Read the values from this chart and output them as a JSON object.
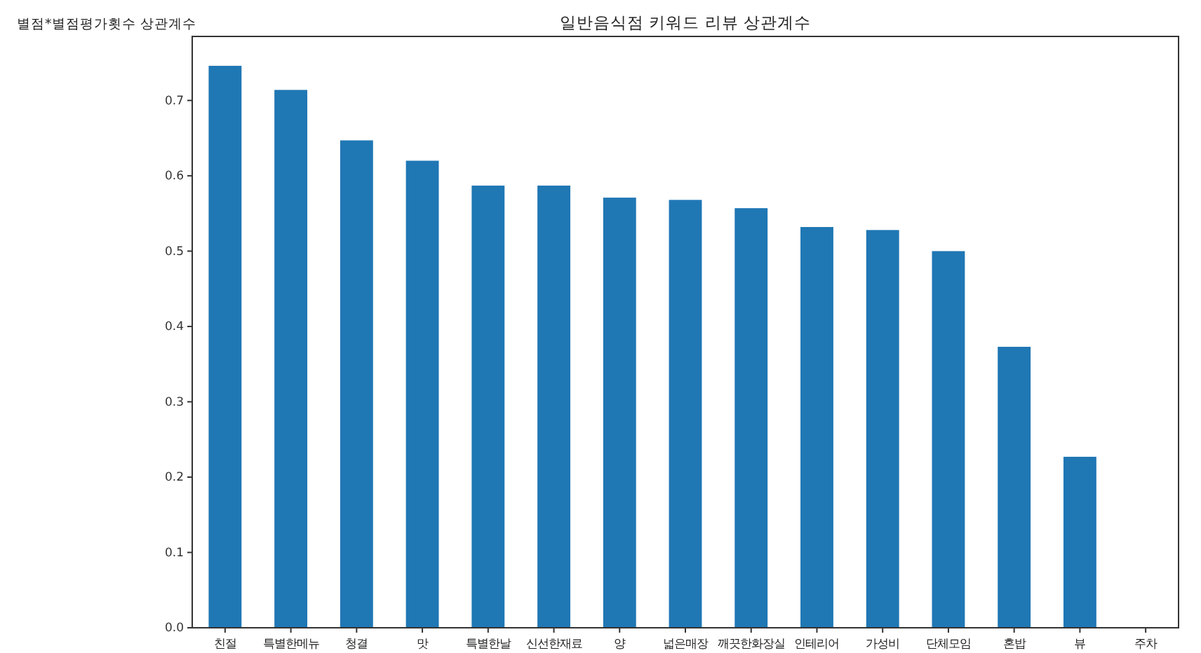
{
  "chart_data": {
    "type": "bar",
    "title": "일반음식점 키워드 리뷰 상관계수",
    "ylabel": "별점*별점평가횟수 상관계수",
    "categories": [
      "친절",
      "특별한메뉴",
      "청결",
      "맛",
      "특별한날",
      "신선한재료",
      "양",
      "넓은매장",
      "깨끗한화장실",
      "인테리어",
      "가성비",
      "단체모임",
      "혼밥",
      "뷰",
      "주차"
    ],
    "values": [
      0.746,
      0.714,
      0.647,
      0.62,
      0.587,
      0.587,
      0.571,
      0.568,
      0.557,
      0.532,
      0.528,
      0.5,
      0.373,
      0.227,
      0
    ],
    "color": "#1f77b4",
    "ylim": [
      0,
      0.785
    ],
    "yticks": [
      {
        "value": 0,
        "label": "0.0"
      },
      {
        "value": 0.1,
        "label": "0.1"
      },
      {
        "value": 0.2,
        "label": "0.2"
      },
      {
        "value": 0.3,
        "label": "0.3"
      },
      {
        "value": 0.4,
        "label": "0.4"
      },
      {
        "value": 0.5,
        "label": "0.5"
      },
      {
        "value": 0.6,
        "label": "0.6"
      },
      {
        "value": 0.7,
        "label": "0.7"
      }
    ],
    "grid": false
  }
}
